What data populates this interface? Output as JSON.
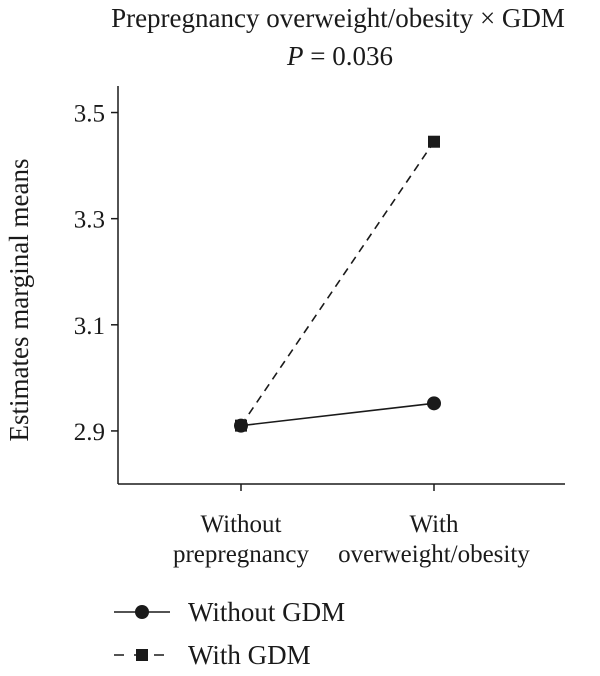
{
  "chart_data": {
    "type": "line",
    "title": "Prepregnancy overweight/obesity × GDM",
    "subtitle_label": "P",
    "subtitle_value": " = 0.036",
    "ylabel": "Estimates marginal means",
    "xlabel": "",
    "ylim": [
      2.8,
      3.55
    ],
    "yticks": [
      2.9,
      3.1,
      3.3,
      3.5
    ],
    "ytick_labels": [
      "2.9",
      "3.1",
      "3.3",
      "3.5"
    ],
    "categories": [
      [
        "Without",
        "prepregnancy"
      ],
      [
        "With",
        "overweight/obesity"
      ]
    ],
    "series": [
      {
        "name": "Without GDM",
        "marker": "circle",
        "dash": "solid",
        "color": "#1a1a1a",
        "values": [
          2.91,
          2.952
        ]
      },
      {
        "name": "With GDM",
        "marker": "square",
        "dash": "dashed",
        "color": "#1a1a1a",
        "values": [
          2.91,
          3.445
        ]
      }
    ],
    "legend_position": "bottom-left",
    "grid": false
  }
}
